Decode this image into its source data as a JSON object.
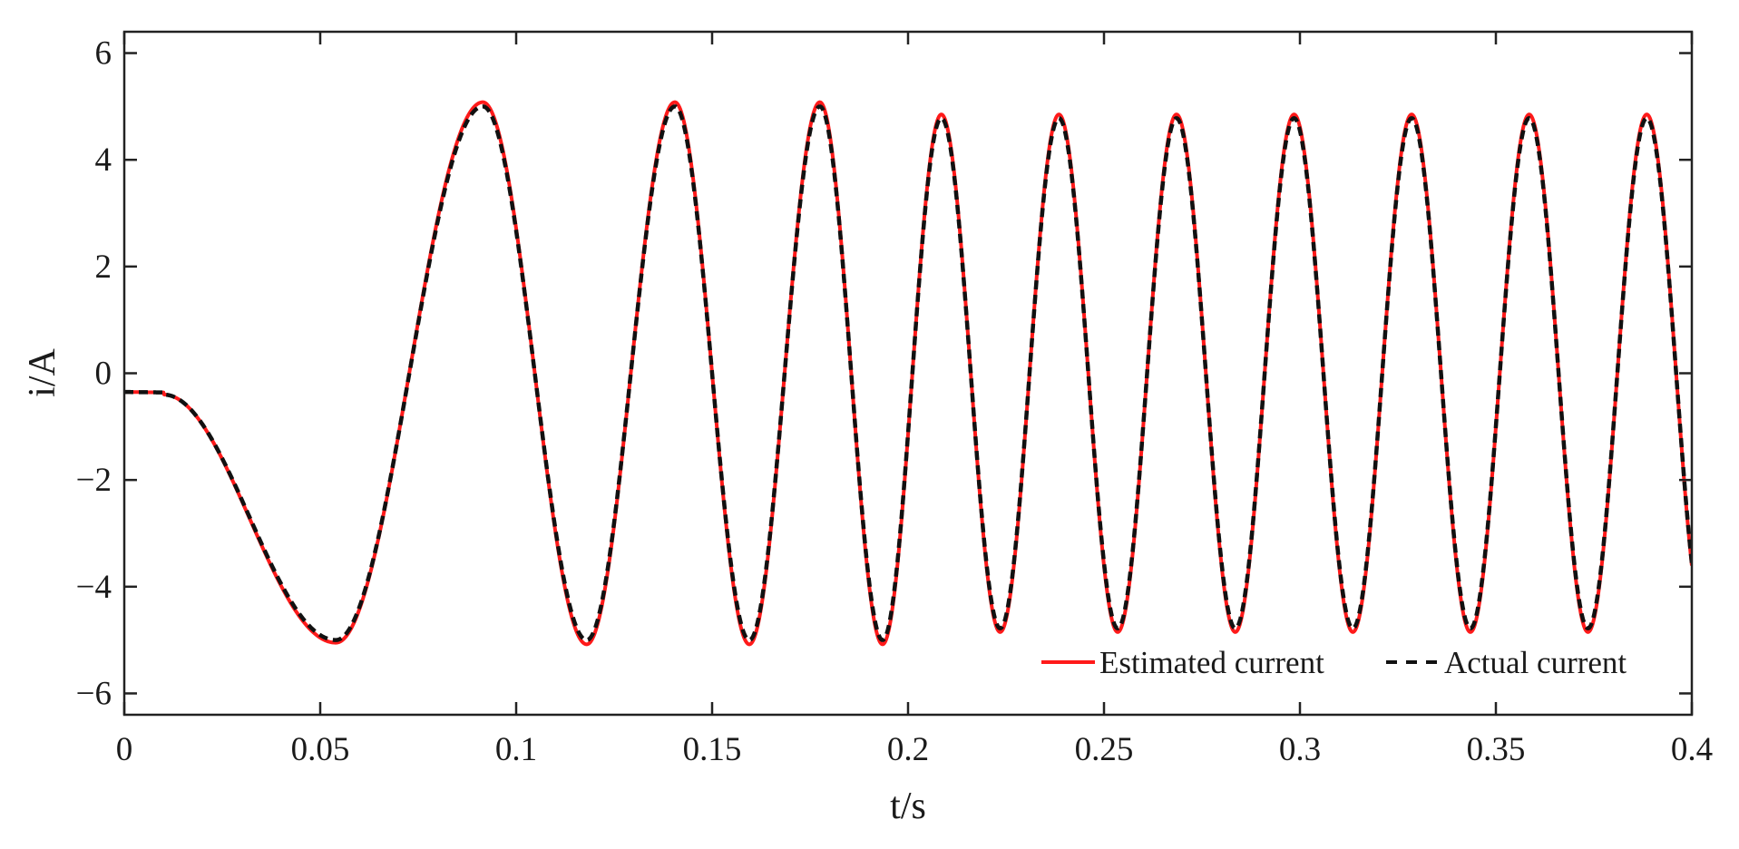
{
  "chart_data": {
    "type": "line",
    "title": "",
    "xlabel": "t/s",
    "ylabel": "i/A",
    "xlim": [
      0,
      0.4
    ],
    "ylim": [
      -6.4,
      6.4
    ],
    "x_ticks": [
      0,
      0.05,
      0.1,
      0.15,
      0.2,
      0.25,
      0.3,
      0.35,
      0.4
    ],
    "x_tick_labels": [
      "0",
      "0.05",
      "0.1",
      "0.15",
      "0.2",
      "0.25",
      "0.3",
      "0.35",
      "0.4"
    ],
    "y_ticks": [
      -6,
      -4,
      -2,
      0,
      2,
      4,
      6
    ],
    "y_tick_labels": [
      "−6",
      "−4",
      "−2",
      "0",
      "2",
      "4",
      "6"
    ],
    "grid": false,
    "legend_position": "bottom-right",
    "series": [
      {
        "name": "Estimated current",
        "color": "#ff1a1a",
        "dash": "solid",
        "x": [
          0,
          0.01,
          0.054,
          0.0915,
          0.118,
          0.1405,
          0.1595,
          0.1775,
          0.1935,
          0.2085,
          0.2235,
          0.2385,
          0.2535,
          0.2685,
          0.2835,
          0.2985,
          0.3135,
          0.3285,
          0.3435,
          0.3585,
          0.3735,
          0.3885,
          0.4
        ],
        "y": [
          -0.35,
          -0.4,
          -5.05,
          5.08,
          -5.08,
          5.08,
          -5.08,
          5.08,
          -5.08,
          4.85,
          -4.85,
          4.85,
          -4.85,
          4.85,
          -4.85,
          4.85,
          -4.85,
          4.85,
          -4.85,
          4.85,
          -4.85,
          4.85,
          -3.8
        ]
      },
      {
        "name": "Actual current",
        "color": "#111111",
        "dash": "dashed",
        "x": [
          0,
          0.01,
          0.054,
          0.0915,
          0.118,
          0.1405,
          0.1595,
          0.1775,
          0.1935,
          0.2085,
          0.2235,
          0.2385,
          0.2535,
          0.2685,
          0.2835,
          0.2985,
          0.3135,
          0.3285,
          0.3435,
          0.3585,
          0.3735,
          0.3885,
          0.4
        ],
        "y": [
          -0.35,
          -0.4,
          -5.0,
          5.0,
          -5.0,
          5.0,
          -5.0,
          5.0,
          -5.0,
          4.78,
          -4.78,
          4.78,
          -4.78,
          4.78,
          -4.78,
          4.78,
          -4.78,
          4.78,
          -4.78,
          4.78,
          -4.78,
          4.78,
          -3.7
        ]
      }
    ]
  }
}
